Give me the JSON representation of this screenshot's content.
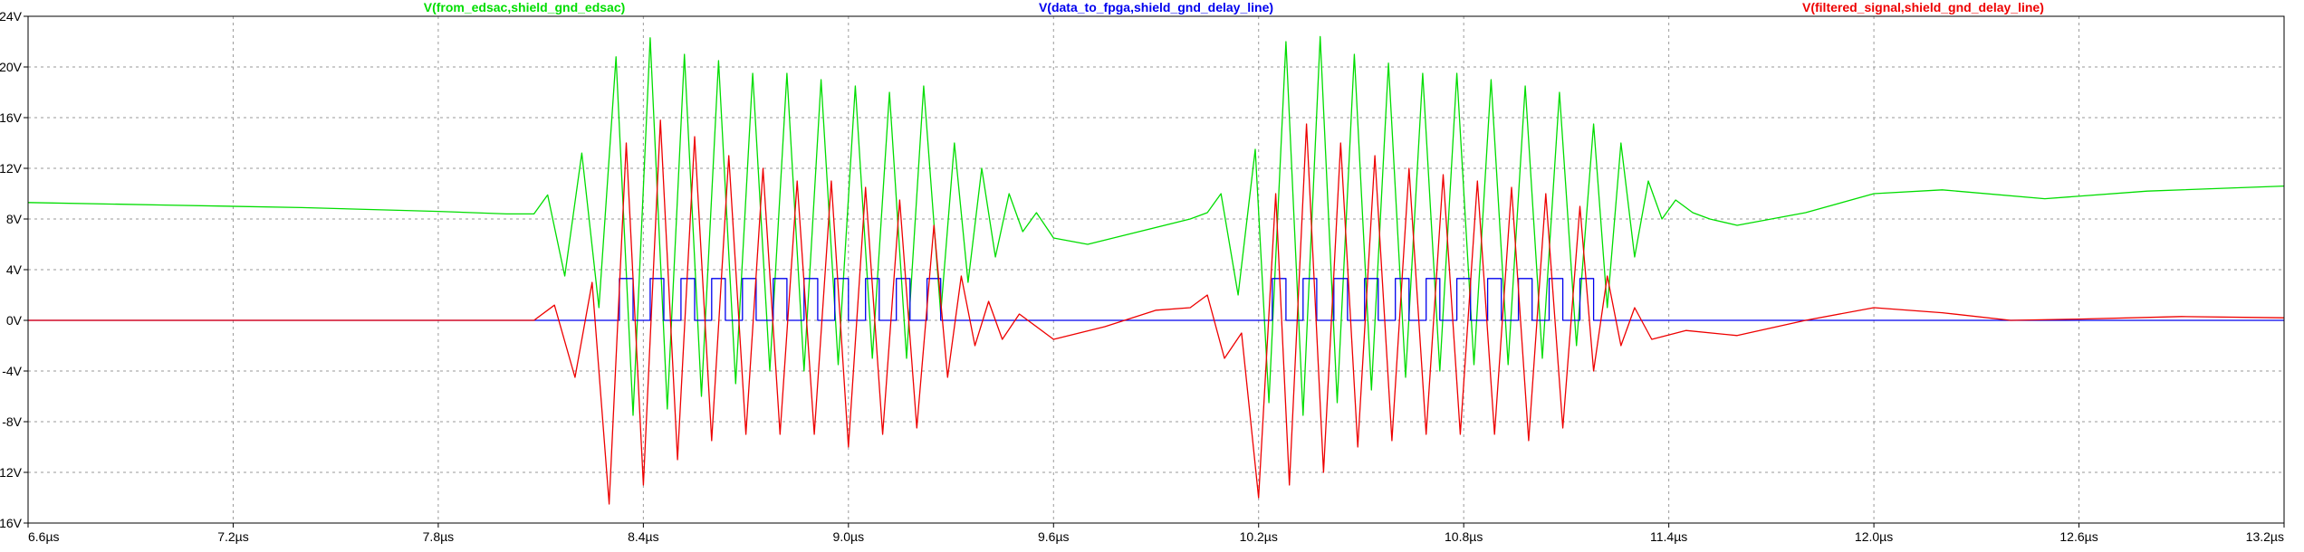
{
  "chart_data": {
    "type": "line",
    "title": "",
    "xlabel": "",
    "ylabel": "",
    "xlim": [
      6.6,
      13.2
    ],
    "ylim": [
      -16,
      24
    ],
    "grid": true,
    "legend_position": "top",
    "x_ticks": [
      6.6,
      7.2,
      7.8,
      8.4,
      9.0,
      9.6,
      10.2,
      10.8,
      11.4,
      12.0,
      12.6,
      13.2
    ],
    "x_tick_labels": [
      "6.6µs",
      "7.2µs",
      "7.8µs",
      "8.4µs",
      "9.0µs",
      "9.6µs",
      "10.2µs",
      "10.8µs",
      "11.4µs",
      "12.0µs",
      "12.6µs",
      "13.2µs"
    ],
    "y_ticks": [
      24,
      20,
      16,
      12,
      8,
      4,
      0,
      -4,
      -8,
      -12,
      -16
    ],
    "y_tick_labels": [
      "24V",
      "20V",
      "16V",
      "12V",
      "8V",
      "4V",
      "0V",
      "-4V",
      "-8V",
      "-12V",
      "-16V"
    ],
    "series": [
      {
        "name": "V(from_edsac,shield_gnd_edsac)",
        "color": "#00dd00",
        "description": "green trace: baseline near 9V decaying to 8.2V, burst oscillations 8.0–9.4µs and 10.0–11.4µs with peaks up to ~22V and troughs near -8V",
        "points": [
          [
            6.6,
            9.3
          ],
          [
            7.0,
            9.1
          ],
          [
            7.4,
            8.9
          ],
          [
            7.8,
            8.6
          ],
          [
            8.0,
            8.4
          ],
          [
            8.08,
            8.4
          ],
          [
            8.12,
            9.9
          ],
          [
            8.17,
            3.5
          ],
          [
            8.22,
            13.2
          ],
          [
            8.27,
            1.0
          ],
          [
            8.32,
            20.8
          ],
          [
            8.37,
            -7.5
          ],
          [
            8.42,
            22.3
          ],
          [
            8.47,
            -7.0
          ],
          [
            8.52,
            21.0
          ],
          [
            8.57,
            -6.0
          ],
          [
            8.62,
            20.5
          ],
          [
            8.67,
            -5.0
          ],
          [
            8.72,
            19.5
          ],
          [
            8.77,
            -4.0
          ],
          [
            8.82,
            19.5
          ],
          [
            8.87,
            -4.0
          ],
          [
            8.92,
            19.0
          ],
          [
            8.97,
            -3.5
          ],
          [
            9.02,
            18.5
          ],
          [
            9.07,
            -3.0
          ],
          [
            9.12,
            18.0
          ],
          [
            9.17,
            -3.0
          ],
          [
            9.22,
            18.5
          ],
          [
            9.27,
            0.5
          ],
          [
            9.31,
            14.0
          ],
          [
            9.35,
            3.0
          ],
          [
            9.39,
            12.0
          ],
          [
            9.43,
            5.0
          ],
          [
            9.47,
            10.0
          ],
          [
            9.51,
            7.0
          ],
          [
            9.55,
            8.5
          ],
          [
            9.6,
            6.5
          ],
          [
            9.7,
            6.0
          ],
          [
            9.85,
            7.0
          ],
          [
            10.0,
            8.0
          ],
          [
            10.05,
            8.5
          ],
          [
            10.09,
            10.0
          ],
          [
            10.14,
            2.0
          ],
          [
            10.19,
            13.5
          ],
          [
            10.23,
            -6.5
          ],
          [
            10.28,
            22.0
          ],
          [
            10.33,
            -7.5
          ],
          [
            10.38,
            22.4
          ],
          [
            10.43,
            -6.5
          ],
          [
            10.48,
            21.0
          ],
          [
            10.53,
            -5.5
          ],
          [
            10.58,
            20.3
          ],
          [
            10.63,
            -4.5
          ],
          [
            10.68,
            19.5
          ],
          [
            10.73,
            -4.0
          ],
          [
            10.78,
            19.5
          ],
          [
            10.83,
            -3.5
          ],
          [
            10.88,
            19.0
          ],
          [
            10.93,
            -3.5
          ],
          [
            10.98,
            18.5
          ],
          [
            11.03,
            -3.0
          ],
          [
            11.08,
            18.0
          ],
          [
            11.13,
            -2.0
          ],
          [
            11.18,
            15.5
          ],
          [
            11.22,
            1.0
          ],
          [
            11.26,
            14.0
          ],
          [
            11.3,
            5.0
          ],
          [
            11.34,
            11.0
          ],
          [
            11.38,
            8.0
          ],
          [
            11.42,
            9.5
          ],
          [
            11.47,
            8.5
          ],
          [
            11.52,
            8.0
          ],
          [
            11.6,
            7.5
          ],
          [
            11.8,
            8.5
          ],
          [
            12.0,
            10.0
          ],
          [
            12.2,
            10.3
          ],
          [
            12.5,
            9.6
          ],
          [
            12.8,
            10.2
          ],
          [
            13.2,
            10.6
          ]
        ]
      },
      {
        "name": "V(data_to_fpga,shield_gnd_delay_line)",
        "color": "#0000ee",
        "description": "blue trace: 0V baseline with 3.3V pulses during the bursts",
        "points": [
          [
            6.6,
            0.0
          ],
          [
            8.33,
            0.0
          ],
          [
            8.33,
            3.3
          ],
          [
            8.37,
            3.3
          ],
          [
            8.37,
            0.0
          ],
          [
            8.42,
            0.0
          ],
          [
            8.42,
            3.3
          ],
          [
            8.46,
            3.3
          ],
          [
            8.46,
            0.0
          ],
          [
            8.51,
            0.0
          ],
          [
            8.51,
            3.3
          ],
          [
            8.55,
            3.3
          ],
          [
            8.55,
            0.0
          ],
          [
            8.6,
            0.0
          ],
          [
            8.6,
            3.3
          ],
          [
            8.64,
            3.3
          ],
          [
            8.64,
            0.0
          ],
          [
            8.69,
            0.0
          ],
          [
            8.69,
            3.3
          ],
          [
            8.73,
            3.3
          ],
          [
            8.73,
            0.0
          ],
          [
            8.78,
            0.0
          ],
          [
            8.78,
            3.3
          ],
          [
            8.82,
            3.3
          ],
          [
            8.82,
            0.0
          ],
          [
            8.87,
            0.0
          ],
          [
            8.87,
            3.3
          ],
          [
            8.91,
            3.3
          ],
          [
            8.91,
            0.0
          ],
          [
            8.96,
            0.0
          ],
          [
            8.96,
            3.3
          ],
          [
            9.0,
            3.3
          ],
          [
            9.0,
            0.0
          ],
          [
            9.05,
            0.0
          ],
          [
            9.05,
            3.3
          ],
          [
            9.09,
            3.3
          ],
          [
            9.09,
            0.0
          ],
          [
            9.14,
            0.0
          ],
          [
            9.14,
            3.3
          ],
          [
            9.18,
            3.3
          ],
          [
            9.18,
            0.0
          ],
          [
            9.23,
            0.0
          ],
          [
            9.23,
            3.3
          ],
          [
            9.27,
            3.3
          ],
          [
            9.27,
            0.0
          ],
          [
            10.24,
            0.0
          ],
          [
            10.24,
            3.3
          ],
          [
            10.28,
            3.3
          ],
          [
            10.28,
            0.0
          ],
          [
            10.33,
            0.0
          ],
          [
            10.33,
            3.3
          ],
          [
            10.37,
            3.3
          ],
          [
            10.37,
            0.0
          ],
          [
            10.42,
            0.0
          ],
          [
            10.42,
            3.3
          ],
          [
            10.46,
            3.3
          ],
          [
            10.46,
            0.0
          ],
          [
            10.51,
            0.0
          ],
          [
            10.51,
            3.3
          ],
          [
            10.55,
            3.3
          ],
          [
            10.55,
            0.0
          ],
          [
            10.6,
            0.0
          ],
          [
            10.6,
            3.3
          ],
          [
            10.64,
            3.3
          ],
          [
            10.64,
            0.0
          ],
          [
            10.69,
            0.0
          ],
          [
            10.69,
            3.3
          ],
          [
            10.73,
            3.3
          ],
          [
            10.73,
            0.0
          ],
          [
            10.78,
            0.0
          ],
          [
            10.78,
            3.3
          ],
          [
            10.82,
            3.3
          ],
          [
            10.82,
            0.0
          ],
          [
            10.87,
            0.0
          ],
          [
            10.87,
            3.3
          ],
          [
            10.91,
            3.3
          ],
          [
            10.91,
            0.0
          ],
          [
            10.96,
            0.0
          ],
          [
            10.96,
            3.3
          ],
          [
            11.0,
            3.3
          ],
          [
            11.0,
            0.0
          ],
          [
            11.05,
            0.0
          ],
          [
            11.05,
            3.3
          ],
          [
            11.09,
            3.3
          ],
          [
            11.09,
            0.0
          ],
          [
            11.14,
            0.0
          ],
          [
            11.14,
            3.3
          ],
          [
            11.18,
            3.3
          ],
          [
            11.18,
            0.0
          ],
          [
            13.2,
            0.0
          ]
        ]
      },
      {
        "name": "V(filtered_signal,shield_gnd_delay_line)",
        "color": "#ee0000",
        "description": "red trace: 0V baseline, burst oscillations with peaks ~16V and troughs ~-14.5V, slow wobble afterwards",
        "points": [
          [
            6.6,
            0.0
          ],
          [
            8.08,
            0.0
          ],
          [
            8.14,
            1.2
          ],
          [
            8.2,
            -4.5
          ],
          [
            8.25,
            3.0
          ],
          [
            8.3,
            -14.5
          ],
          [
            8.35,
            14.0
          ],
          [
            8.4,
            -13.0
          ],
          [
            8.45,
            15.8
          ],
          [
            8.5,
            -11.0
          ],
          [
            8.55,
            14.5
          ],
          [
            8.6,
            -9.5
          ],
          [
            8.65,
            13.0
          ],
          [
            8.7,
            -9.0
          ],
          [
            8.75,
            12.0
          ],
          [
            8.8,
            -9.0
          ],
          [
            8.85,
            11.0
          ],
          [
            8.9,
            -9.0
          ],
          [
            8.95,
            11.0
          ],
          [
            9.0,
            -10.0
          ],
          [
            9.05,
            10.5
          ],
          [
            9.1,
            -9.0
          ],
          [
            9.15,
            9.5
          ],
          [
            9.2,
            -8.5
          ],
          [
            9.25,
            7.5
          ],
          [
            9.29,
            -4.5
          ],
          [
            9.33,
            3.5
          ],
          [
            9.37,
            -2.0
          ],
          [
            9.41,
            1.5
          ],
          [
            9.45,
            -1.5
          ],
          [
            9.5,
            0.5
          ],
          [
            9.6,
            -1.5
          ],
          [
            9.75,
            -0.5
          ],
          [
            9.9,
            0.8
          ],
          [
            10.0,
            1.0
          ],
          [
            10.05,
            2.0
          ],
          [
            10.1,
            -3.0
          ],
          [
            10.15,
            -1.0
          ],
          [
            10.2,
            -14.0
          ],
          [
            10.25,
            10.0
          ],
          [
            10.29,
            -13.0
          ],
          [
            10.34,
            15.5
          ],
          [
            10.39,
            -12.0
          ],
          [
            10.44,
            14.0
          ],
          [
            10.49,
            -10.0
          ],
          [
            10.54,
            13.0
          ],
          [
            10.59,
            -9.5
          ],
          [
            10.64,
            12.0
          ],
          [
            10.69,
            -9.0
          ],
          [
            10.74,
            11.5
          ],
          [
            10.79,
            -9.0
          ],
          [
            10.84,
            11.0
          ],
          [
            10.89,
            -9.0
          ],
          [
            10.94,
            10.5
          ],
          [
            10.99,
            -9.5
          ],
          [
            11.04,
            10.0
          ],
          [
            11.09,
            -8.5
          ],
          [
            11.14,
            9.0
          ],
          [
            11.18,
            -4.0
          ],
          [
            11.22,
            3.5
          ],
          [
            11.26,
            -2.0
          ],
          [
            11.3,
            1.0
          ],
          [
            11.35,
            -1.5
          ],
          [
            11.45,
            -0.8
          ],
          [
            11.6,
            -1.2
          ],
          [
            11.8,
            0.0
          ],
          [
            12.0,
            1.0
          ],
          [
            12.2,
            0.6
          ],
          [
            12.4,
            0.0
          ],
          [
            12.6,
            0.1
          ],
          [
            12.9,
            0.3
          ],
          [
            13.2,
            0.2
          ]
        ]
      }
    ]
  }
}
